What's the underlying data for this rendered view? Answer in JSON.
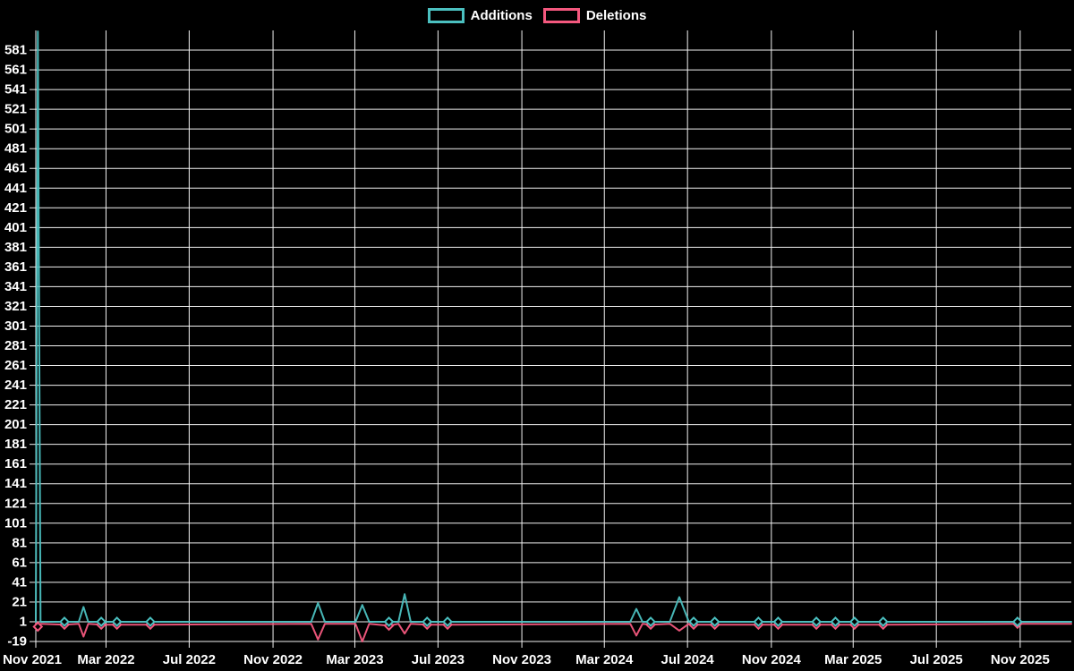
{
  "page": {
    "background": "#000000",
    "text_color": "#ffffff",
    "gridline_color": "#f2f2f2"
  },
  "chart_data": {
    "type": "line",
    "title": "",
    "legend_position": "top",
    "grid": true,
    "x_axis": {
      "type": "time",
      "min_date": "2021-11-18",
      "max_date": "2026-01-15",
      "ticks": [
        {
          "date": "2021-11-01",
          "label": "Nov 2021"
        },
        {
          "date": "2022-03-01",
          "label": "Mar 2022"
        },
        {
          "date": "2022-07-01",
          "label": "Jul 2022"
        },
        {
          "date": "2022-11-01",
          "label": "Nov 2022"
        },
        {
          "date": "2023-03-01",
          "label": "Mar 2023"
        },
        {
          "date": "2023-07-01",
          "label": "Jul 2023"
        },
        {
          "date": "2023-11-01",
          "label": "Nov 2023"
        },
        {
          "date": "2024-03-01",
          "label": "Mar 2024"
        },
        {
          "date": "2024-07-01",
          "label": "Jul 2024"
        },
        {
          "date": "2024-11-01",
          "label": "Nov 2024"
        },
        {
          "date": "2025-03-01",
          "label": "Mar 2025"
        },
        {
          "date": "2025-07-01",
          "label": "Jul 2025"
        },
        {
          "date": "2025-11-01",
          "label": "Nov 2025"
        }
      ]
    },
    "y_axis": {
      "min": -19,
      "max": 601,
      "tick_step": 20,
      "tick_labels": [
        "-19",
        "1",
        "21",
        "41",
        "61",
        "81",
        "101",
        "121",
        "141",
        "161",
        "181",
        "201",
        "221",
        "241",
        "261",
        "281",
        "301",
        "321",
        "341",
        "361",
        "381",
        "401",
        "421",
        "441",
        "461",
        "481",
        "501",
        "521",
        "541",
        "561",
        "581"
      ]
    },
    "series": [
      {
        "name": "Additions",
        "color": "#4bc0c0",
        "points": [
          [
            "2021-11-18",
            1,
            0
          ],
          [
            "2021-11-21",
            600,
            0
          ],
          [
            "2021-11-25",
            1,
            0
          ],
          [
            "2021-12-30",
            1,
            1
          ],
          [
            "2022-01-20",
            1,
            0
          ],
          [
            "2022-01-27",
            16,
            0
          ],
          [
            "2022-02-03",
            1,
            0
          ],
          [
            "2022-02-22",
            1,
            1
          ],
          [
            "2022-03-17",
            1,
            1
          ],
          [
            "2022-05-05",
            1,
            1
          ],
          [
            "2022-12-27",
            1,
            0
          ],
          [
            "2023-01-06",
            20,
            0
          ],
          [
            "2023-01-16",
            1,
            0
          ],
          [
            "2023-03-02",
            1,
            0
          ],
          [
            "2023-03-12",
            18,
            0
          ],
          [
            "2023-03-22",
            1,
            0
          ],
          [
            "2023-04-20",
            1,
            1
          ],
          [
            "2023-05-04",
            1,
            0
          ],
          [
            "2023-05-13",
            29,
            0
          ],
          [
            "2023-05-22",
            1,
            0
          ],
          [
            "2023-06-15",
            1,
            1
          ],
          [
            "2023-07-15",
            1,
            1
          ],
          [
            "2024-04-08",
            1,
            0
          ],
          [
            "2024-04-17",
            14,
            0
          ],
          [
            "2024-04-26",
            1,
            0
          ],
          [
            "2024-05-08",
            1,
            1
          ],
          [
            "2024-06-05",
            1,
            0
          ],
          [
            "2024-06-19",
            26,
            0
          ],
          [
            "2024-07-03",
            1,
            0
          ],
          [
            "2024-07-10",
            1,
            1
          ],
          [
            "2024-08-10",
            1,
            1
          ],
          [
            "2024-10-13",
            1,
            1
          ],
          [
            "2024-11-11",
            1,
            1
          ],
          [
            "2025-01-06",
            1,
            1
          ],
          [
            "2025-02-03",
            1,
            1
          ],
          [
            "2025-03-03",
            1,
            1
          ],
          [
            "2025-04-14",
            1,
            1
          ],
          [
            "2025-10-28",
            1,
            1
          ],
          [
            "2026-01-15",
            1,
            0
          ]
        ]
      },
      {
        "name": "Deletions",
        "color": "#f4587e",
        "points": [
          [
            "2021-11-18",
            -1,
            0
          ],
          [
            "2021-11-21",
            -4,
            1
          ],
          [
            "2021-11-25",
            -1,
            0
          ],
          [
            "2021-12-30",
            -2,
            1
          ],
          [
            "2022-01-20",
            -1,
            0
          ],
          [
            "2022-01-27",
            -14,
            0
          ],
          [
            "2022-02-03",
            -1,
            0
          ],
          [
            "2022-02-22",
            -2,
            1
          ],
          [
            "2022-03-17",
            -2,
            1
          ],
          [
            "2022-05-05",
            -2,
            1
          ],
          [
            "2022-12-27",
            -1,
            0
          ],
          [
            "2023-01-06",
            -17,
            0
          ],
          [
            "2023-01-16",
            -1,
            0
          ],
          [
            "2023-03-02",
            -1,
            0
          ],
          [
            "2023-03-12",
            -19,
            0
          ],
          [
            "2023-03-22",
            -1,
            0
          ],
          [
            "2023-04-20",
            -3,
            1
          ],
          [
            "2023-05-04",
            -1,
            0
          ],
          [
            "2023-05-13",
            -11,
            0
          ],
          [
            "2023-05-22",
            -1,
            0
          ],
          [
            "2023-06-15",
            -2,
            1
          ],
          [
            "2023-07-15",
            -2,
            1
          ],
          [
            "2024-04-08",
            -1,
            0
          ],
          [
            "2024-04-17",
            -13,
            0
          ],
          [
            "2024-04-26",
            -1,
            0
          ],
          [
            "2024-05-08",
            -2,
            1
          ],
          [
            "2024-06-05",
            -1,
            0
          ],
          [
            "2024-06-19",
            -8,
            0
          ],
          [
            "2024-07-03",
            -1,
            0
          ],
          [
            "2024-07-10",
            -2,
            1
          ],
          [
            "2024-08-10",
            -2,
            1
          ],
          [
            "2024-10-13",
            -2,
            1
          ],
          [
            "2024-11-11",
            -2,
            1
          ],
          [
            "2025-01-06",
            -2,
            1
          ],
          [
            "2025-02-03",
            -2,
            1
          ],
          [
            "2025-03-03",
            -2,
            1
          ],
          [
            "2025-04-14",
            -2,
            1
          ],
          [
            "2025-10-28",
            -1,
            1
          ],
          [
            "2026-01-15",
            -1,
            0
          ]
        ]
      }
    ]
  }
}
